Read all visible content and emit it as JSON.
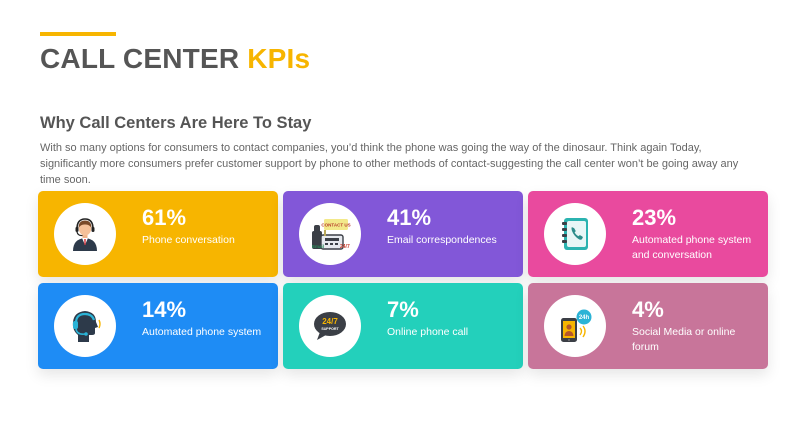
{
  "header": {
    "title_main": "CALL CENTER",
    "title_highlight": "KPIs"
  },
  "section": {
    "subtitle": "Why Call Centers Are Here To Stay",
    "description": "With so many options for consumers to contact companies, you’d think the phone was going the way of the dinosaur. Think again Today, significantly more consumers prefer customer support by phone to other methods of contact-suggesting the call center won’t be going away any time soon."
  },
  "colors": {
    "accent": "#f7b500",
    "title_gray": "#555555"
  },
  "cards": [
    {
      "percent": "61%",
      "label": "Phone conversation",
      "color": "#f7b500",
      "icon": "operator-icon"
    },
    {
      "percent": "41%",
      "label": "Email correspondences",
      "color": "#8257d8",
      "icon": "contact-us-icon",
      "icon_text": [
        "CONTACT US",
        "Email",
        "24/7"
      ]
    },
    {
      "percent": "23%",
      "label": "Automated phone system and conversation",
      "color": "#e94a9e",
      "icon": "phonebook-icon"
    },
    {
      "percent": "14%",
      "label": "Automated phone system",
      "color": "#1e8cf5",
      "icon": "headset-head-icon"
    },
    {
      "percent": "7%",
      "label": "Online phone call",
      "color": "#23d0bb",
      "icon": "chat-24-7-icon",
      "icon_text": [
        "24/7",
        "SUPPORT"
      ]
    },
    {
      "percent": "4%",
      "label": "Social Media or online forum",
      "color": "#c8759a",
      "icon": "mobile-24h-icon",
      "icon_text": [
        "24h"
      ]
    }
  ]
}
